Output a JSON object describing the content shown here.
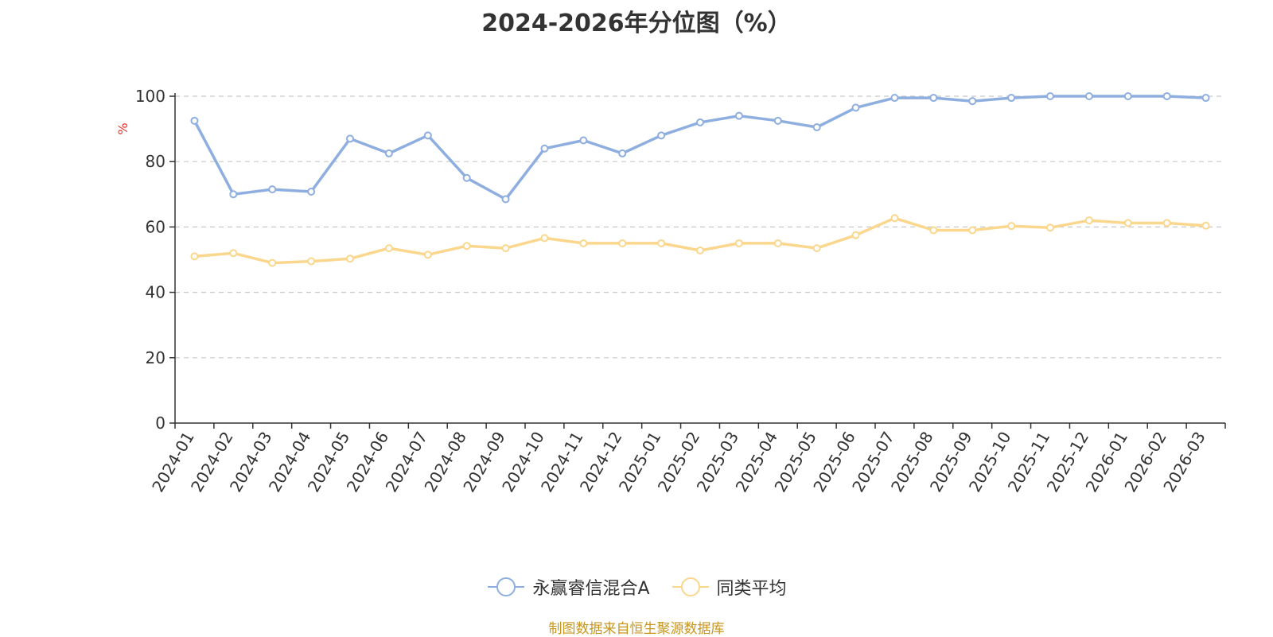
{
  "chart_data": {
    "type": "line",
    "title": "2024-2026年分位图（%）",
    "ylabel": "%",
    "ylim": [
      0,
      100
    ],
    "yticks": [
      0,
      20,
      40,
      60,
      80,
      100
    ],
    "grid": true,
    "legend_position": "bottom",
    "categories": [
      "2024-01",
      "2024-02",
      "2024-03",
      "2024-04",
      "2024-05",
      "2024-06",
      "2024-07",
      "2024-08",
      "2024-09",
      "2024-10",
      "2024-11",
      "2024-12",
      "2025-01",
      "2025-02",
      "2025-03",
      "2025-04",
      "2025-05",
      "2025-06",
      "2025-07",
      "2025-08",
      "2025-09",
      "2025-10",
      "2025-11",
      "2025-12",
      "2026-01",
      "2026-02",
      "2026-03"
    ],
    "series": [
      {
        "name": "永赢睿信混合A",
        "color": "#8eaee0",
        "values": [
          92.5,
          70,
          71.5,
          70.8,
          87,
          82.5,
          88,
          75,
          68.5,
          84,
          86.5,
          82.5,
          88,
          92,
          94,
          92.5,
          90.5,
          96.5,
          99.5,
          99.5,
          98.5,
          99.5,
          100,
          100,
          100,
          100,
          99.5
        ]
      },
      {
        "name": "同类平均",
        "color": "#fbd78e",
        "values": [
          51,
          52,
          49,
          49.5,
          50.3,
          53.5,
          51.5,
          54.2,
          53.5,
          56.6,
          55,
          55,
          55,
          52.8,
          55,
          55,
          53.5,
          57.5,
          62.7,
          59,
          59,
          60.3,
          59.8,
          62,
          61.2,
          61.2,
          60.4
        ]
      }
    ]
  },
  "footer": {
    "source": "制图数据来自恒生聚源数据库"
  }
}
